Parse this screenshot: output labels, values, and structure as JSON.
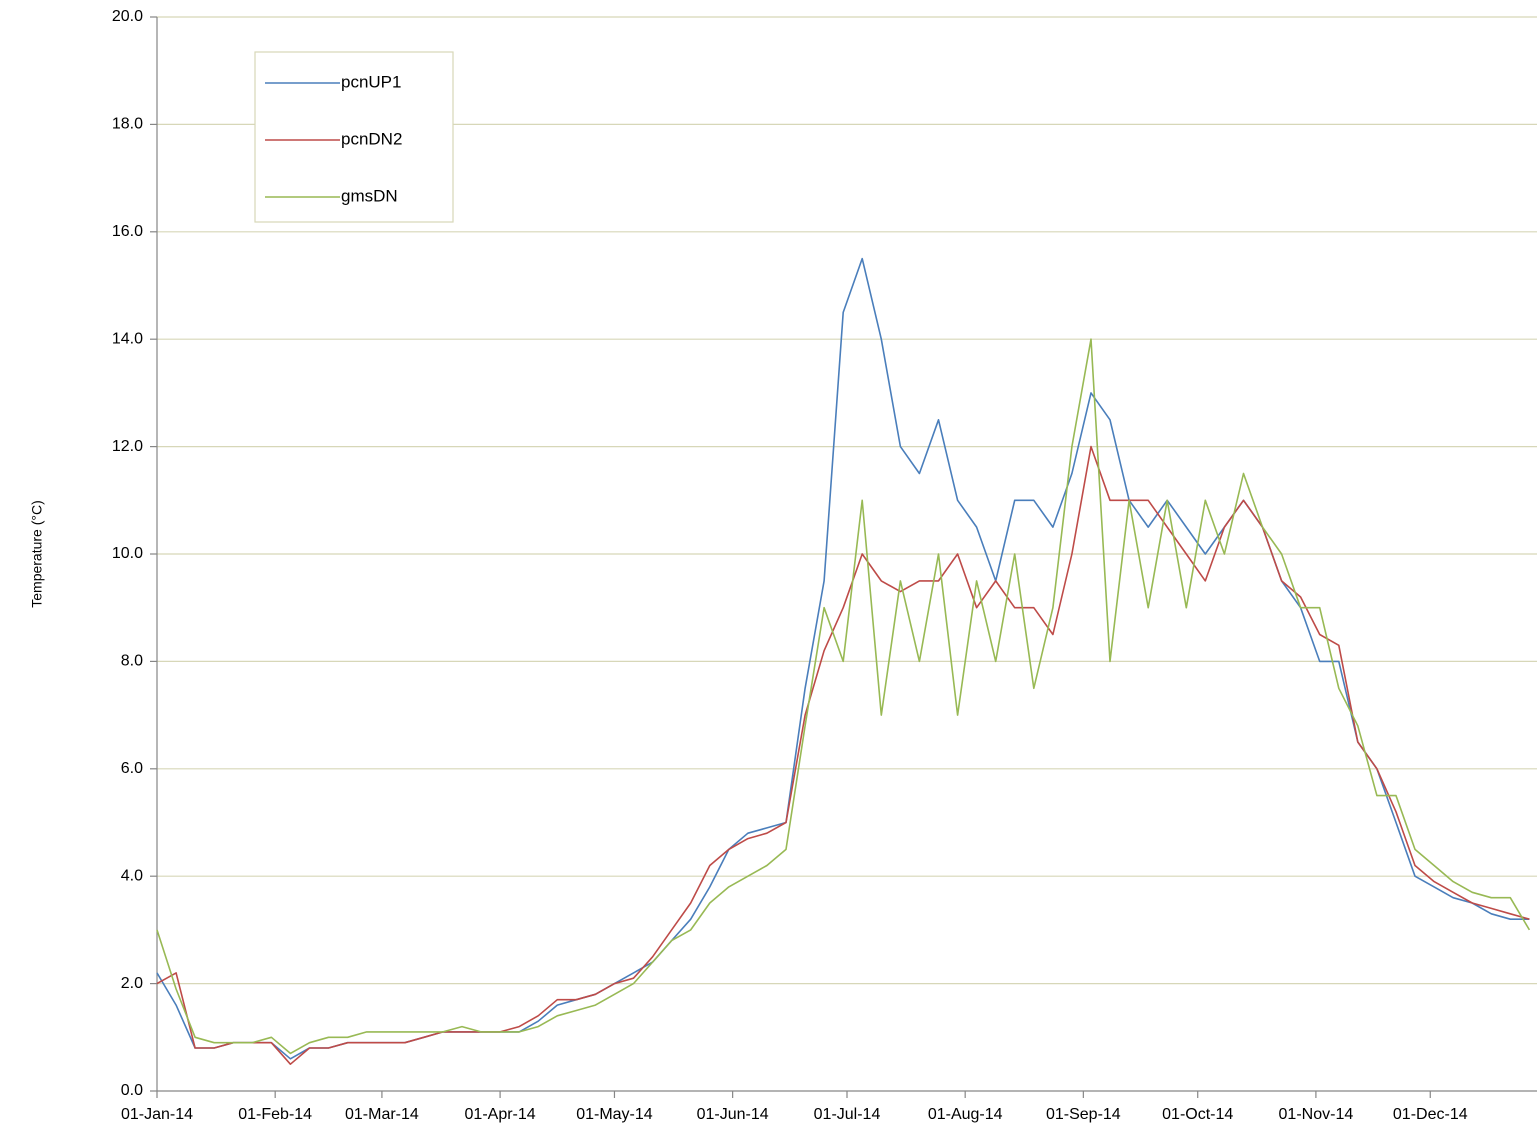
{
  "chart_data": {
    "type": "line",
    "y_label": "Temperature (°C)",
    "x": [
      "2014-01-01",
      "2014-01-06",
      "2014-01-11",
      "2014-01-16",
      "2014-01-21",
      "2014-01-26",
      "2014-01-31",
      "2014-02-05",
      "2014-02-10",
      "2014-02-15",
      "2014-02-20",
      "2014-02-25",
      "2014-03-02",
      "2014-03-07",
      "2014-03-12",
      "2014-03-17",
      "2014-03-22",
      "2014-03-27",
      "2014-04-01",
      "2014-04-06",
      "2014-04-11",
      "2014-04-16",
      "2014-04-21",
      "2014-04-26",
      "2014-05-01",
      "2014-05-06",
      "2014-05-11",
      "2014-05-16",
      "2014-05-21",
      "2014-05-26",
      "2014-05-31",
      "2014-06-05",
      "2014-06-10",
      "2014-06-15",
      "2014-06-20",
      "2014-06-25",
      "2014-06-30",
      "2014-07-05",
      "2014-07-10",
      "2014-07-15",
      "2014-07-20",
      "2014-07-25",
      "2014-07-30",
      "2014-08-04",
      "2014-08-09",
      "2014-08-14",
      "2014-08-19",
      "2014-08-24",
      "2014-08-29",
      "2014-09-03",
      "2014-09-08",
      "2014-09-13",
      "2014-09-18",
      "2014-09-23",
      "2014-09-28",
      "2014-10-03",
      "2014-10-08",
      "2014-10-13",
      "2014-10-18",
      "2014-10-23",
      "2014-10-28",
      "2014-11-02",
      "2014-11-07",
      "2014-11-12",
      "2014-11-17",
      "2014-11-22",
      "2014-11-27",
      "2014-12-02",
      "2014-12-07",
      "2014-12-12",
      "2014-12-17",
      "2014-12-22",
      "2014-12-27"
    ],
    "series": [
      {
        "name": "pcnUP1",
        "color": "#4a7ebb",
        "values": [
          2.2,
          1.6,
          0.8,
          0.8,
          0.9,
          0.9,
          0.9,
          0.6,
          0.8,
          0.8,
          0.9,
          0.9,
          0.9,
          0.9,
          1.0,
          1.1,
          1.1,
          1.1,
          1.1,
          1.1,
          1.3,
          1.6,
          1.7,
          1.8,
          2.0,
          2.2,
          2.4,
          2.8,
          3.2,
          3.8,
          4.5,
          4.8,
          4.9,
          5.0,
          7.5,
          9.5,
          14.5,
          15.5,
          14.0,
          12.0,
          11.5,
          12.5,
          11.0,
          10.5,
          9.5,
          11.0,
          11.0,
          10.5,
          11.5,
          13.0,
          12.5,
          11.0,
          10.5,
          11.0,
          10.5,
          10.0,
          10.5,
          11.0,
          10.5,
          9.5,
          9.0,
          8.0,
          8.0,
          6.5,
          6.0,
          5.0,
          4.0,
          3.8,
          3.6,
          3.5,
          3.3,
          3.2,
          3.2
        ]
      },
      {
        "name": "pcnDN2",
        "color": "#be4b48",
        "values": [
          2.0,
          2.2,
          0.8,
          0.8,
          0.9,
          0.9,
          0.9,
          0.5,
          0.8,
          0.8,
          0.9,
          0.9,
          0.9,
          0.9,
          1.0,
          1.1,
          1.1,
          1.1,
          1.1,
          1.2,
          1.4,
          1.7,
          1.7,
          1.8,
          2.0,
          2.1,
          2.5,
          3.0,
          3.5,
          4.2,
          4.5,
          4.7,
          4.8,
          5.0,
          7.0,
          8.2,
          9.0,
          10.0,
          9.5,
          9.3,
          9.5,
          9.5,
          10.0,
          9.0,
          9.5,
          9.0,
          9.0,
          8.5,
          10.0,
          12.0,
          11.0,
          11.0,
          11.0,
          10.5,
          10.0,
          9.5,
          10.5,
          11.0,
          10.5,
          9.5,
          9.2,
          8.5,
          8.3,
          6.5,
          6.0,
          5.2,
          4.2,
          3.9,
          3.7,
          3.5,
          3.4,
          3.3,
          3.2
        ]
      },
      {
        "name": "gmsDN",
        "color": "#98b954",
        "values": [
          3.0,
          1.9,
          1.0,
          0.9,
          0.9,
          0.9,
          1.0,
          0.7,
          0.9,
          1.0,
          1.0,
          1.1,
          1.1,
          1.1,
          1.1,
          1.1,
          1.2,
          1.1,
          1.1,
          1.1,
          1.2,
          1.4,
          1.5,
          1.6,
          1.8,
          2.0,
          2.4,
          2.8,
          3.0,
          3.5,
          3.8,
          4.0,
          4.2,
          4.5,
          6.8,
          9.0,
          8.0,
          11.0,
          7.0,
          9.5,
          8.0,
          10.0,
          7.0,
          9.5,
          8.0,
          10.0,
          7.5,
          9.0,
          12.0,
          14.0,
          8.0,
          11.0,
          9.0,
          11.0,
          9.0,
          11.0,
          10.0,
          11.5,
          10.5,
          10.0,
          9.0,
          9.0,
          7.5,
          6.8,
          5.5,
          5.5,
          4.5,
          4.2,
          3.9,
          3.7,
          3.6,
          3.6,
          3.0
        ]
      }
    ],
    "xlim": [
      "2014-01-01",
      "2014-12-29"
    ],
    "xticks": [
      {
        "value": "2014-01-01",
        "label": "01-Jan-14"
      },
      {
        "value": "2014-02-01",
        "label": "01-Feb-14"
      },
      {
        "value": "2014-03-01",
        "label": "01-Mar-14"
      },
      {
        "value": "2014-04-01",
        "label": "01-Apr-14"
      },
      {
        "value": "2014-05-01",
        "label": "01-May-14"
      },
      {
        "value": "2014-06-01",
        "label": "01-Jun-14"
      },
      {
        "value": "2014-07-01",
        "label": "01-Jul-14"
      },
      {
        "value": "2014-08-01",
        "label": "01-Aug-14"
      },
      {
        "value": "2014-09-01",
        "label": "01-Sep-14"
      },
      {
        "value": "2014-10-01",
        "label": "01-Oct-14"
      },
      {
        "value": "2014-11-01",
        "label": "01-Nov-14"
      },
      {
        "value": "2014-12-01",
        "label": "01-Dec-14"
      }
    ],
    "ylim": [
      0,
      20
    ],
    "yticks": [
      {
        "value": 0,
        "label": "0.0"
      },
      {
        "value": 2,
        "label": "2.0"
      },
      {
        "value": 4,
        "label": "4.0"
      },
      {
        "value": 6,
        "label": "6.0"
      },
      {
        "value": 8,
        "label": "8.0"
      },
      {
        "value": 10,
        "label": "10.0"
      },
      {
        "value": 12,
        "label": "12.0"
      },
      {
        "value": 14,
        "label": "14.0"
      },
      {
        "value": 16,
        "label": "16.0"
      },
      {
        "value": 18,
        "label": "18.0"
      },
      {
        "value": 20,
        "label": "20.0"
      }
    ],
    "grid": true,
    "legend": "upper left"
  }
}
